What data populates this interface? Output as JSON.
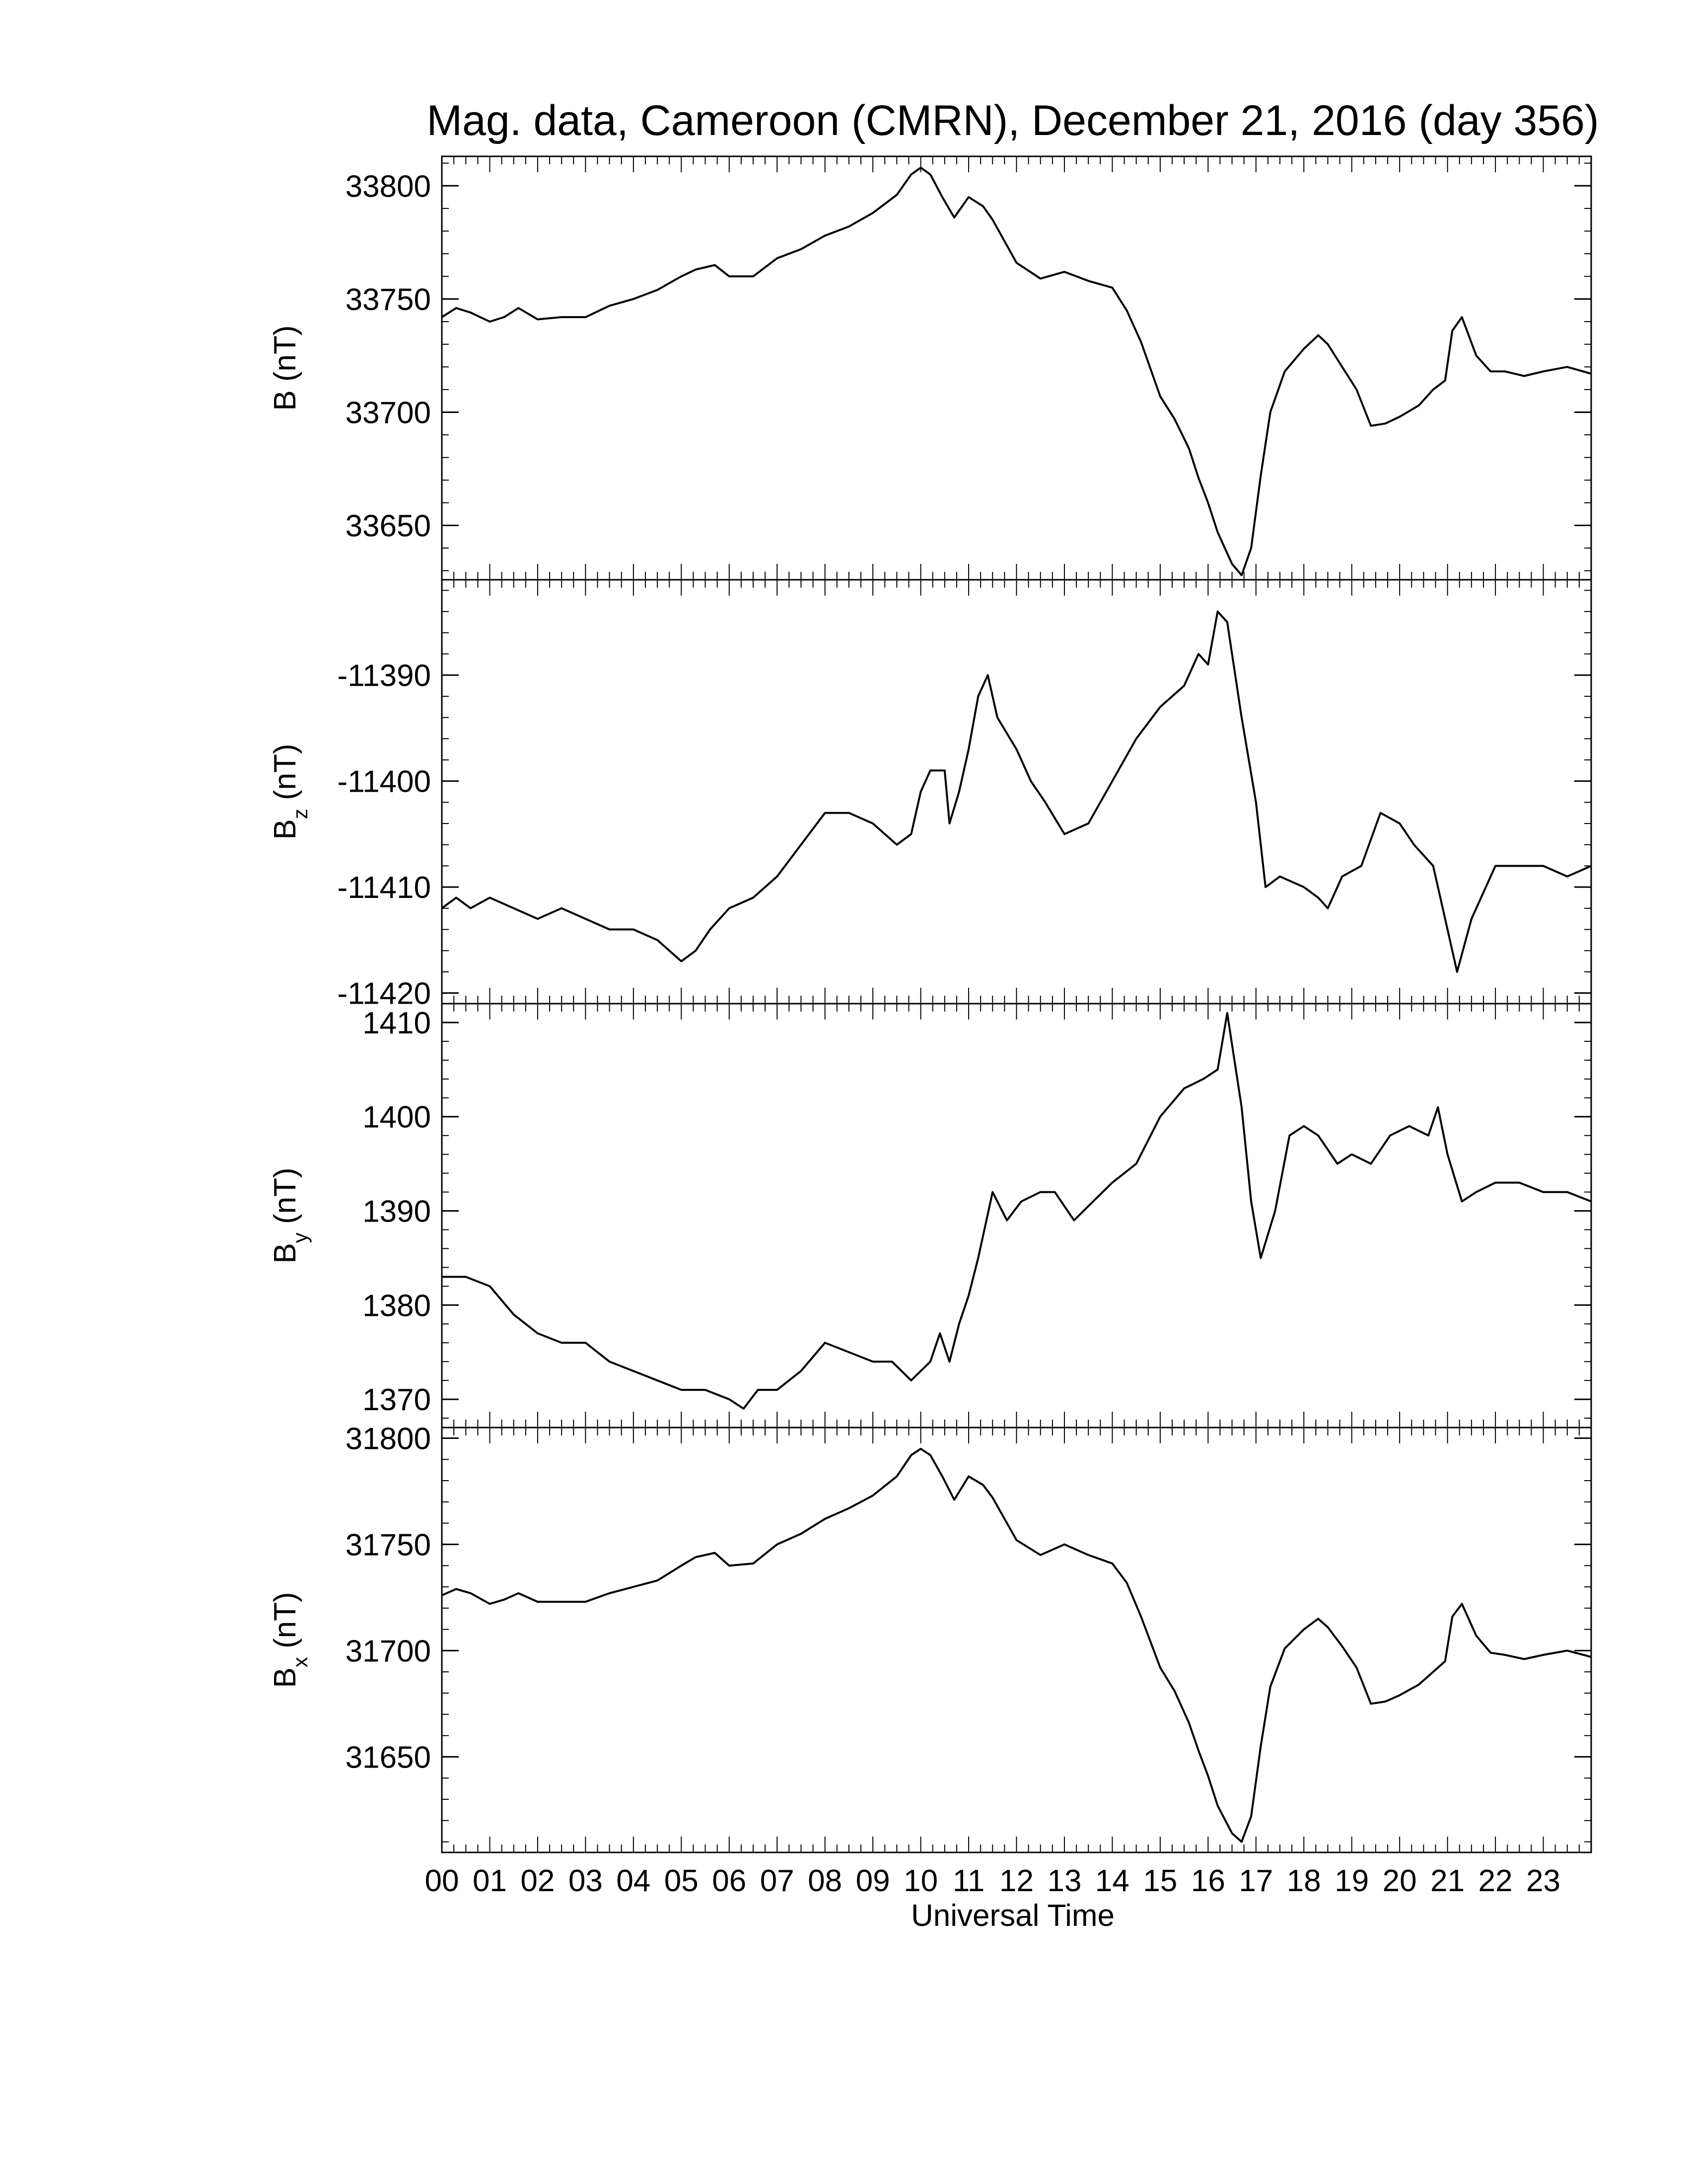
{
  "title": "Mag. data, Cameroon (CMRN), December 21, 2016 (day 356)",
  "xlabel": "Universal Time",
  "line_color": "#000000",
  "chart_data": [
    {
      "type": "line",
      "ylabel": "B (nT)",
      "ylabel_main": "B",
      "ylabel_sub": "",
      "ylabel_unit": " (nT)",
      "ylim": [
        33626,
        33813
      ],
      "yticks": [
        33650,
        33700,
        33750,
        33800
      ],
      "ytick_labels": [
        "33650",
        "33700",
        "33750",
        "33800"
      ],
      "minor_step": 10,
      "grid": false,
      "x": [
        0,
        0.3,
        0.6,
        1.0,
        1.3,
        1.6,
        2.0,
        2.5,
        3.0,
        3.5,
        4.0,
        4.5,
        5.0,
        5.3,
        5.7,
        6.0,
        6.5,
        7.0,
        7.5,
        8.0,
        8.5,
        9.0,
        9.5,
        9.8,
        10.0,
        10.2,
        10.45,
        10.7,
        11.0,
        11.3,
        11.5,
        12.0,
        12.5,
        13.0,
        13.5,
        14.0,
        14.3,
        14.6,
        15.0,
        15.3,
        15.6,
        15.8,
        16.0,
        16.2,
        16.5,
        16.7,
        16.9,
        17.1,
        17.3,
        17.6,
        18.0,
        18.3,
        18.5,
        18.8,
        19.1,
        19.4,
        19.7,
        20.0,
        20.4,
        20.7,
        20.95,
        21.1,
        21.3,
        21.6,
        21.9,
        22.2,
        22.6,
        23.0,
        23.5,
        24.0
      ],
      "y": [
        33742,
        33746,
        33744,
        33740,
        33742,
        33746,
        33741,
        33742,
        33742,
        33747,
        33750,
        33754,
        33760,
        33763,
        33765,
        33760,
        33760,
        33768,
        33772,
        33778,
        33782,
        33788,
        33796,
        33805,
        33808,
        33805,
        33795,
        33786,
        33795,
        33791,
        33785,
        33766,
        33759,
        33762,
        33758,
        33755,
        33745,
        33731,
        33707,
        33697,
        33684,
        33671,
        33660,
        33647,
        33633,
        33628,
        33640,
        33672,
        33700,
        33718,
        33728,
        33734,
        33730,
        33720,
        33710,
        33694,
        33695,
        33698,
        33703,
        33710,
        33714,
        33736,
        33742,
        33725,
        33718,
        33718,
        33716,
        33718,
        33720,
        33717
      ]
    },
    {
      "type": "line",
      "ylabel": "Bz (nT)",
      "ylabel_main": "B",
      "ylabel_sub": "z",
      "ylabel_unit": " (nT)",
      "ylim": [
        -11421,
        -11381
      ],
      "yticks": [
        -11420,
        -11410,
        -11400,
        -11390
      ],
      "ytick_labels": [
        "-11420",
        "-11410",
        "-11400",
        "-11390"
      ],
      "minor_step": 2,
      "grid": false,
      "x": [
        0,
        0.3,
        0.6,
        1.0,
        1.5,
        2.0,
        2.5,
        3.0,
        3.5,
        4.0,
        4.5,
        5.0,
        5.3,
        5.6,
        6.0,
        6.5,
        7.0,
        7.5,
        8.0,
        8.5,
        9.0,
        9.5,
        9.8,
        10.0,
        10.2,
        10.5,
        10.6,
        10.8,
        11.0,
        11.2,
        11.4,
        11.6,
        12.0,
        12.3,
        12.6,
        13.0,
        13.5,
        14.0,
        14.5,
        15.0,
        15.5,
        15.8,
        16.0,
        16.2,
        16.4,
        16.7,
        17.0,
        17.2,
        17.5,
        18.0,
        18.3,
        18.5,
        18.8,
        19.2,
        19.6,
        20.0,
        20.3,
        20.7,
        20.95,
        21.2,
        21.5,
        22.0,
        22.5,
        23.0,
        23.5,
        24.0
      ],
      "y": [
        -11412,
        -11411,
        -11412,
        -11411,
        -11412,
        -11413,
        -11412,
        -11413,
        -11414,
        -11414,
        -11415,
        -11417,
        -11416,
        -11414,
        -11412,
        -11411,
        -11409,
        -11406,
        -11403,
        -11403,
        -11404,
        -11406,
        -11405,
        -11401,
        -11399,
        -11399,
        -11404,
        -11401,
        -11397,
        -11392,
        -11390,
        -11394,
        -11397,
        -11400,
        -11402,
        -11405,
        -11404,
        -11400,
        -11396,
        -11393,
        -11391,
        -11388,
        -11389,
        -11384,
        -11385,
        -11394,
        -11402,
        -11410,
        -11409,
        -11410,
        -11411,
        -11412,
        -11409,
        -11408,
        -11403,
        -11404,
        -11406,
        -11408,
        -11413,
        -11418,
        -11413,
        -11408,
        -11408,
        -11408,
        -11409,
        -11408
      ]
    },
    {
      "type": "line",
      "ylabel": "By (nT)",
      "ylabel_main": "B",
      "ylabel_sub": "y",
      "ylabel_unit": " (nT)",
      "ylim": [
        1367,
        1412
      ],
      "yticks": [
        1370,
        1380,
        1390,
        1400,
        1410
      ],
      "ytick_labels": [
        "1370",
        "1380",
        "1390",
        "1400",
        "1410"
      ],
      "minor_step": 2,
      "grid": false,
      "x": [
        0,
        0.5,
        1.0,
        1.5,
        2.0,
        2.5,
        3.0,
        3.5,
        4.0,
        4.5,
        5.0,
        5.5,
        6.0,
        6.3,
        6.6,
        7.0,
        7.5,
        8.0,
        8.5,
        9.0,
        9.4,
        9.8,
        10.2,
        10.4,
        10.6,
        10.8,
        11.0,
        11.2,
        11.5,
        11.8,
        12.1,
        12.5,
        12.8,
        13.2,
        13.6,
        14.0,
        14.5,
        15.0,
        15.5,
        15.9,
        16.2,
        16.4,
        16.7,
        16.9,
        17.1,
        17.4,
        17.7,
        18.0,
        18.3,
        18.7,
        19.0,
        19.4,
        19.8,
        20.2,
        20.6,
        20.8,
        21.0,
        21.3,
        21.6,
        22.0,
        22.5,
        23.0,
        23.5,
        24.0
      ],
      "y": [
        1383,
        1383,
        1382,
        1379,
        1377,
        1376,
        1376,
        1374,
        1373,
        1372,
        1371,
        1371,
        1370,
        1369,
        1371,
        1371,
        1373,
        1376,
        1375,
        1374,
        1374,
        1372,
        1374,
        1377,
        1374,
        1378,
        1381,
        1385,
        1392,
        1389,
        1391,
        1392,
        1392,
        1389,
        1391,
        1393,
        1395,
        1400,
        1403,
        1404,
        1405,
        1411,
        1401,
        1391,
        1385,
        1390,
        1398,
        1399,
        1398,
        1395,
        1396,
        1395,
        1398,
        1399,
        1398,
        1401,
        1396,
        1391,
        1392,
        1393,
        1393,
        1392,
        1392,
        1391
      ]
    },
    {
      "type": "line",
      "ylabel": "Bx (nT)",
      "ylabel_main": "B",
      "ylabel_sub": "x",
      "ylabel_unit": " (nT)",
      "ylim": [
        31605,
        31805
      ],
      "yticks": [
        31650,
        31700,
        31750,
        31800
      ],
      "ytick_labels": [
        "31650",
        "31700",
        "31750",
        "31800"
      ],
      "minor_step": 10,
      "grid": false,
      "x": [
        0,
        0.3,
        0.6,
        1.0,
        1.3,
        1.6,
        2.0,
        2.5,
        3.0,
        3.5,
        4.0,
        4.5,
        5.0,
        5.3,
        5.7,
        6.0,
        6.5,
        7.0,
        7.5,
        8.0,
        8.5,
        9.0,
        9.5,
        9.8,
        10.0,
        10.2,
        10.45,
        10.7,
        11.0,
        11.3,
        11.5,
        12.0,
        12.5,
        13.0,
        13.5,
        14.0,
        14.3,
        14.6,
        15.0,
        15.3,
        15.6,
        15.8,
        16.0,
        16.2,
        16.5,
        16.7,
        16.9,
        17.1,
        17.3,
        17.6,
        18.0,
        18.3,
        18.5,
        18.8,
        19.1,
        19.4,
        19.7,
        20.0,
        20.4,
        20.7,
        20.95,
        21.1,
        21.3,
        21.6,
        21.9,
        22.2,
        22.6,
        23.0,
        23.5,
        24.0
      ],
      "y": [
        31726,
        31729,
        31727,
        31722,
        31724,
        31727,
        31723,
        31723,
        31723,
        31727,
        31730,
        31733,
        31740,
        31744,
        31746,
        31740,
        31741,
        31750,
        31755,
        31762,
        31767,
        31773,
        31782,
        31792,
        31795,
        31792,
        31782,
        31771,
        31782,
        31778,
        31772,
        31752,
        31745,
        31750,
        31745,
        31741,
        31732,
        31716,
        31692,
        31681,
        31666,
        31653,
        31641,
        31627,
        31614,
        31610,
        31622,
        31655,
        31683,
        31701,
        31710,
        31715,
        31711,
        31702,
        31692,
        31675,
        31676,
        31679,
        31684,
        31690,
        31695,
        31716,
        31722,
        31707,
        31699,
        31698,
        31696,
        31698,
        31700,
        31697
      ]
    }
  ],
  "xtick_labels": [
    "00",
    "01",
    "02",
    "03",
    "04",
    "05",
    "06",
    "07",
    "08",
    "09",
    "10",
    "11",
    "12",
    "13",
    "14",
    "15",
    "16",
    "17",
    "18",
    "19",
    "20",
    "21",
    "22",
    "23"
  ],
  "xlim": [
    0,
    24
  ],
  "x_minor_step": 0.25
}
